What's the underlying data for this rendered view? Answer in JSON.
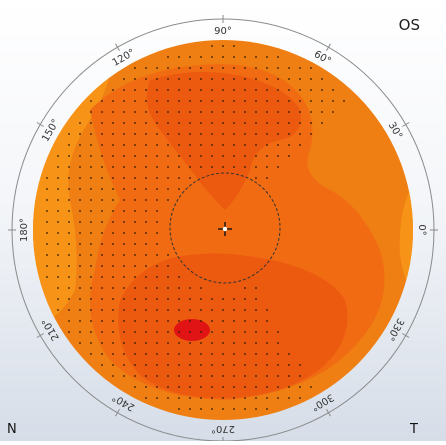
{
  "eye": "OS",
  "corners": {
    "left": "N",
    "right": "T"
  },
  "angle_labels": [
    {
      "text": "90°",
      "deg": 90
    },
    {
      "text": "60°",
      "deg": 60
    },
    {
      "text": "30°",
      "deg": 30
    },
    {
      "text": "0°",
      "deg": 0
    },
    {
      "text": "330°",
      "deg": 330
    },
    {
      "text": "300°",
      "deg": 300
    },
    {
      "text": "270°",
      "deg": 270
    },
    {
      "text": "240°",
      "deg": 240
    },
    {
      "text": "210°",
      "deg": 210
    },
    {
      "text": "180°",
      "deg": 180
    },
    {
      "text": "150°",
      "deg": 150
    },
    {
      "text": "120°",
      "deg": 120
    }
  ],
  "colors": {
    "base_orange": "#ef7f12",
    "light_orange": "#f79418",
    "mid_orange": "#f06b12",
    "deep_orange": "#ec5a10",
    "hot_spot": "#e01414",
    "ring": "#8a8a8a",
    "dots": "#2b1a00"
  }
}
